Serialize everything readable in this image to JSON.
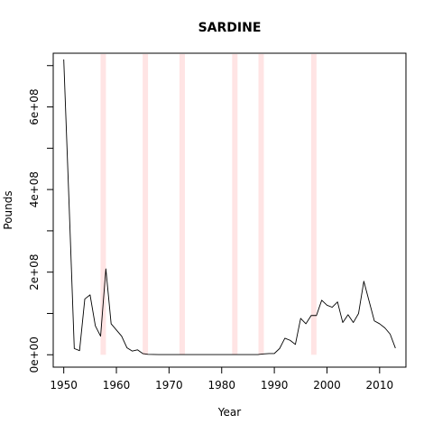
{
  "chart_data": {
    "type": "line",
    "title": "SARDINE",
    "xlabel": "Year",
    "ylabel": "Pounds",
    "xlim": [
      1948,
      2015
    ],
    "ylim": [
      -30000000,
      730000000
    ],
    "x_ticks": [
      1950,
      1960,
      1970,
      1980,
      1990,
      2000,
      2010
    ],
    "x_tick_labels": [
      "1950",
      "1960",
      "1970",
      "1980",
      "1990",
      "2000",
      "2010"
    ],
    "y_ticks": [
      0,
      100000000,
      200000000,
      300000000,
      400000000,
      500000000,
      600000000,
      700000000
    ],
    "y_tick_labels": [
      "0e+00",
      "",
      "2e+08",
      "",
      "4e+08",
      "",
      "6e+08",
      ""
    ],
    "grid": false,
    "highlight_bands": {
      "color": "#ffe4e4",
      "x": [
        1957.5,
        1965.5,
        1972.5,
        1982.5,
        1987.5,
        1997.5
      ]
    },
    "series": [
      {
        "color": "#000000",
        "x": [
          1950,
          1951,
          1952,
          1953,
          1954,
          1955,
          1956,
          1957,
          1958,
          1959,
          1960,
          1961,
          1962,
          1963,
          1964,
          1965,
          1966,
          1967,
          1968,
          1969,
          1970,
          1971,
          1972,
          1973,
          1974,
          1975,
          1976,
          1977,
          1978,
          1979,
          1980,
          1981,
          1982,
          1983,
          1984,
          1985,
          1986,
          1987,
          1988,
          1989,
          1990,
          1991,
          1992,
          1993,
          1994,
          1995,
          1996,
          1997,
          1998,
          1999,
          2000,
          2001,
          2002,
          2003,
          2004,
          2005,
          2006,
          2007,
          2008,
          2009,
          2010,
          2011,
          2012,
          2013
        ],
        "y": [
          715000000,
          370000000,
          15000000,
          10000000,
          135000000,
          145000000,
          70000000,
          45000000,
          208000000,
          75000000,
          60000000,
          45000000,
          17000000,
          9000000,
          12000000,
          3000000,
          1000000,
          700000,
          500000,
          500000,
          500000,
          500000,
          500000,
          500000,
          500000,
          500000,
          500000,
          500000,
          500000,
          500000,
          500000,
          500000,
          500000,
          500000,
          500000,
          500000,
          500000,
          600000,
          2000000,
          3000000,
          3000000,
          15000000,
          40000000,
          35000000,
          25000000,
          88000000,
          75000000,
          95000000,
          95000000,
          132000000,
          120000000,
          115000000,
          128000000,
          78000000,
          97000000,
          78000000,
          100000000,
          178000000,
          130000000,
          82000000,
          75000000,
          65000000,
          50000000,
          16000000
        ]
      }
    ]
  }
}
